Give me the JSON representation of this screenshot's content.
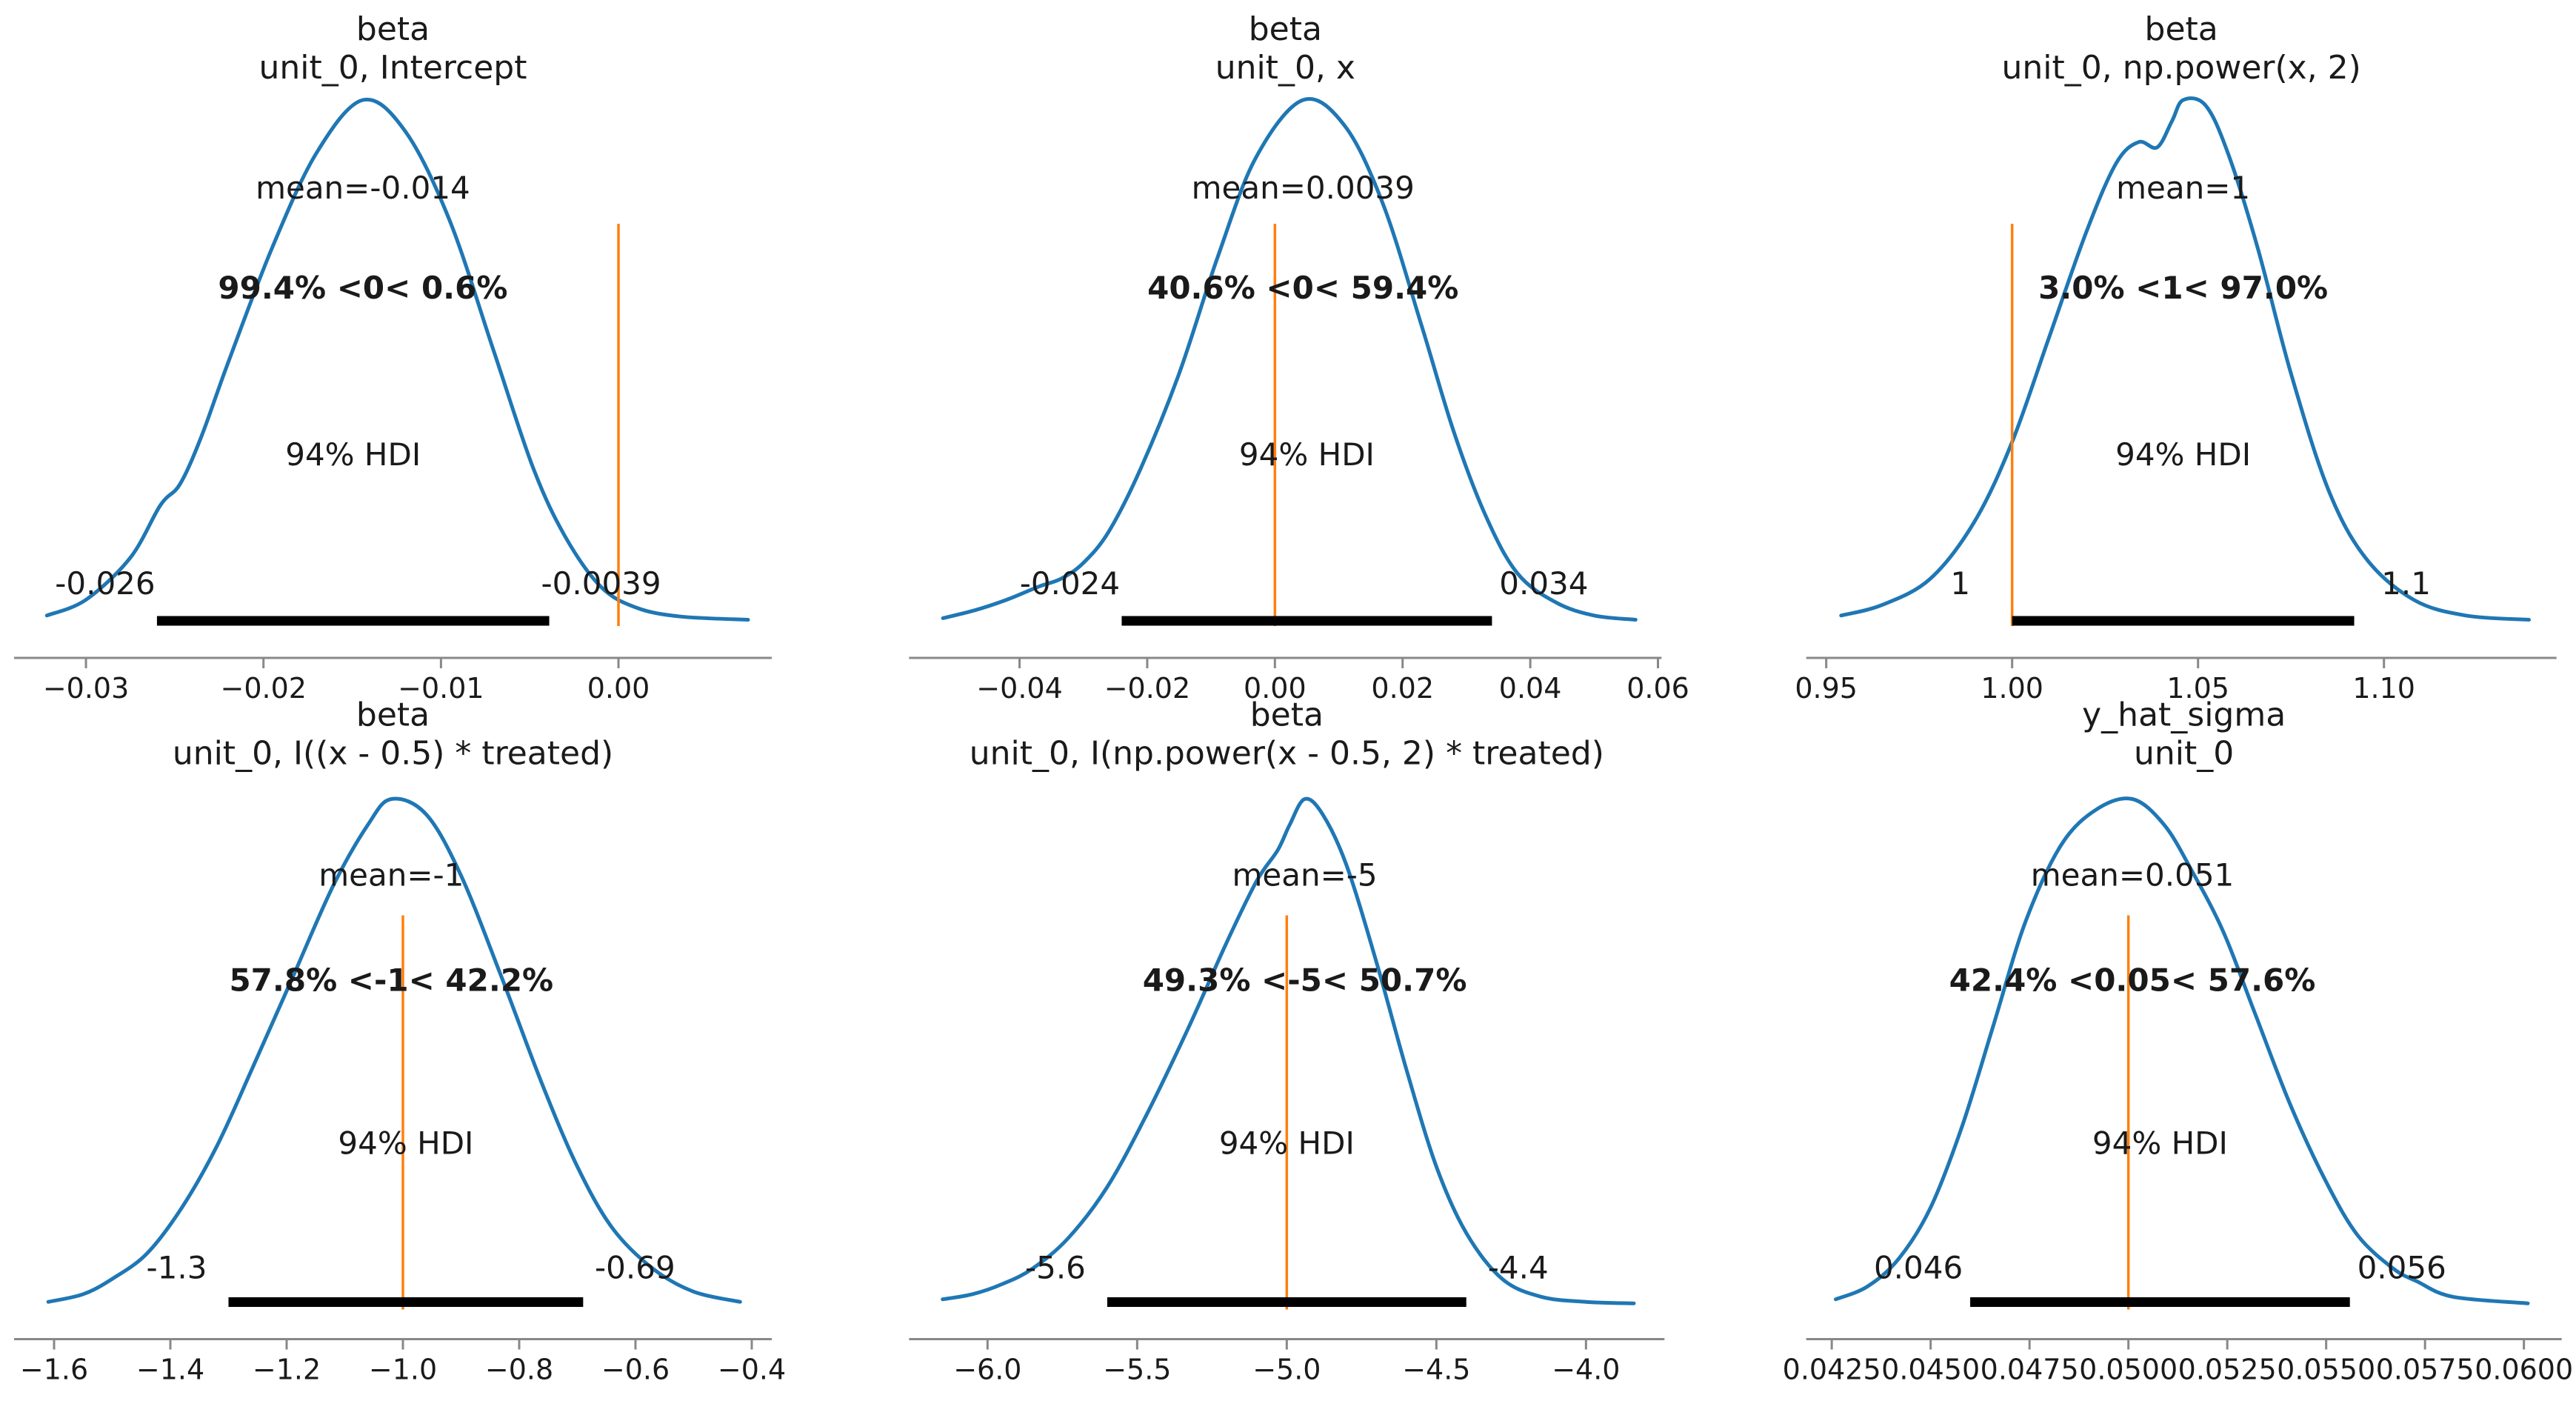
{
  "figure": {
    "kind": "posterior-grid",
    "rows": 2,
    "cols": 3,
    "background": "#ffffff",
    "colors": {
      "kde": "#1f77b4",
      "ref_line": "#ff7f0e",
      "ref_text": "#ff7f0e",
      "hdi_bar": "#000000",
      "axis": "#888888",
      "text": "#1a1a1a"
    }
  },
  "chart_data": [
    {
      "type": "kde",
      "title": [
        "beta",
        "unit_0, Intercept"
      ],
      "mean_label": "mean=-0.014",
      "mean_value": -0.014,
      "ref_label": "99.4% <0< 0.6%",
      "ref_value": 0,
      "hdi_label": "94% HDI",
      "hdi": [
        -0.026,
        -0.0039
      ],
      "hdi_text_labels": [
        "-0.026",
        "-0.0039"
      ],
      "peak_x": -0.0144,
      "xlim": [
        -0.03405,
        0.008636
      ],
      "x_ticks": [
        -0.03,
        -0.02,
        -0.01,
        0.0
      ],
      "x_tick_labels": [
        "−0.03",
        "−0.02",
        "−0.01",
        "0.00"
      ],
      "curve": [
        [
          -0.0322,
          0.02
        ],
        [
          -0.03,
          0.05
        ],
        [
          -0.0275,
          0.13
        ],
        [
          -0.0258,
          0.23
        ],
        [
          -0.0247,
          0.27
        ],
        [
          -0.0235,
          0.36
        ],
        [
          -0.022,
          0.5
        ],
        [
          -0.0195,
          0.72
        ],
        [
          -0.017,
          0.9
        ],
        [
          -0.0144,
          1.0
        ],
        [
          -0.012,
          0.94
        ],
        [
          -0.0095,
          0.77
        ],
        [
          -0.007,
          0.52
        ],
        [
          -0.0048,
          0.3
        ],
        [
          -0.003,
          0.17
        ],
        [
          -0.001,
          0.075
        ],
        [
          0.001,
          0.035
        ],
        [
          0.0035,
          0.018
        ],
        [
          0.0073,
          0.012
        ]
      ]
    },
    {
      "type": "kde",
      "title": [
        "beta",
        "unit_0, x"
      ],
      "mean_label": "mean=0.0039",
      "mean_value": 0.0039,
      "ref_label": "40.6% <0< 59.4%",
      "ref_value": 0,
      "hdi_label": "94% HDI",
      "hdi": [
        -0.024,
        0.034
      ],
      "hdi_text_labels": [
        "-0.024",
        "0.034"
      ],
      "peak_x": 0.0044,
      "xlim": [
        -0.05731,
        0.06056
      ],
      "x_ticks": [
        -0.04,
        -0.02,
        0.0,
        0.02,
        0.04,
        0.06
      ],
      "x_tick_labels": [
        "−0.04",
        "−0.02",
        "0.00",
        "0.02",
        "0.04",
        "0.06"
      ],
      "curve": [
        [
          -0.052,
          0.015
        ],
        [
          -0.047,
          0.03
        ],
        [
          -0.042,
          0.05
        ],
        [
          -0.037,
          0.075
        ],
        [
          -0.0335,
          0.09
        ],
        [
          -0.03,
          0.12
        ],
        [
          -0.026,
          0.18
        ],
        [
          -0.021,
          0.3
        ],
        [
          -0.015,
          0.48
        ],
        [
          -0.009,
          0.7
        ],
        [
          -0.003,
          0.89
        ],
        [
          0.0044,
          1.0
        ],
        [
          0.011,
          0.95
        ],
        [
          0.017,
          0.8
        ],
        [
          0.023,
          0.57
        ],
        [
          0.028,
          0.37
        ],
        [
          0.033,
          0.21
        ],
        [
          0.038,
          0.1
        ],
        [
          0.044,
          0.045
        ],
        [
          0.05,
          0.02
        ],
        [
          0.0565,
          0.012
        ]
      ]
    },
    {
      "type": "kde",
      "title": [
        "beta",
        "unit_0, np.power(x, 2)"
      ],
      "mean_label": "mean=1",
      "mean_value": 1,
      "ref_label": "3.0% <1< 97.0%",
      "ref_value": 1,
      "hdi_label": "94% HDI",
      "hdi": [
        1.0,
        1.092
      ],
      "hdi_text_labels": [
        "1",
        "1.1"
      ],
      "peak_x": 1.046,
      "xlim": [
        0.94462,
        1.14641
      ],
      "x_ticks": [
        0.95,
        1.0,
        1.05,
        1.1
      ],
      "x_tick_labels": [
        "0.95",
        "1.00",
        "1.05",
        "1.10"
      ],
      "curve": [
        [
          0.954,
          0.02
        ],
        [
          0.965,
          0.04
        ],
        [
          0.978,
          0.09
        ],
        [
          0.99,
          0.2
        ],
        [
          1.0,
          0.35
        ],
        [
          1.01,
          0.55
        ],
        [
          1.02,
          0.75
        ],
        [
          1.028,
          0.88
        ],
        [
          1.034,
          0.92
        ],
        [
          1.039,
          0.91
        ],
        [
          1.043,
          0.96
        ],
        [
          1.046,
          1.0
        ],
        [
          1.052,
          0.99
        ],
        [
          1.058,
          0.9
        ],
        [
          1.066,
          0.72
        ],
        [
          1.075,
          0.48
        ],
        [
          1.085,
          0.26
        ],
        [
          1.095,
          0.13
        ],
        [
          1.108,
          0.05
        ],
        [
          1.122,
          0.02
        ],
        [
          1.139,
          0.012
        ]
      ]
    },
    {
      "type": "kde",
      "title": [
        "beta",
        "unit_0, I((x - 0.5) * treated)"
      ],
      "mean_label": "mean=-1",
      "mean_value": -1,
      "ref_label": "57.8% <-1< 42.2%",
      "ref_value": -1,
      "hdi_label": "94% HDI",
      "hdi": [
        -1.3,
        -0.69
      ],
      "hdi_text_labels": [
        "-1.3",
        "-0.69"
      ],
      "peak_x": -1.02,
      "xlim": [
        -1.66879,
        -0.36561
      ],
      "x_ticks": [
        -1.6,
        -1.4,
        -1.2,
        -1.0,
        -0.8,
        -0.6,
        -0.4
      ],
      "x_tick_labels": [
        "−1.6",
        "−1.4",
        "−1.2",
        "−1.0",
        "−0.8",
        "−0.6",
        "−0.4"
      ],
      "curve": [
        [
          -1.61,
          0.015
        ],
        [
          -1.55,
          0.03
        ],
        [
          -1.5,
          0.06
        ],
        [
          -1.44,
          0.11
        ],
        [
          -1.38,
          0.2
        ],
        [
          -1.32,
          0.32
        ],
        [
          -1.26,
          0.47
        ],
        [
          -1.19,
          0.65
        ],
        [
          -1.12,
          0.83
        ],
        [
          -1.06,
          0.95
        ],
        [
          -1.02,
          1.0
        ],
        [
          -0.96,
          0.97
        ],
        [
          -0.9,
          0.85
        ],
        [
          -0.83,
          0.65
        ],
        [
          -0.76,
          0.44
        ],
        [
          -0.7,
          0.28
        ],
        [
          -0.64,
          0.16
        ],
        [
          -0.57,
          0.08
        ],
        [
          -0.5,
          0.035
        ],
        [
          -0.42,
          0.015
        ]
      ]
    },
    {
      "type": "kde",
      "title": [
        "beta",
        "unit_0, I(np.power(x - 0.5, 2) * treated)"
      ],
      "mean_label": "mean=-5",
      "mean_value": -5,
      "ref_label": "49.3% <-5< 50.7%",
      "ref_value": -5,
      "hdi_label": "94% HDI",
      "hdi": [
        -5.6,
        -4.4
      ],
      "hdi_text_labels": [
        "-5.6",
        "-4.4"
      ],
      "peak_x": -4.94,
      "xlim": [
        -6.26238,
        -3.73762
      ],
      "x_ticks": [
        -6.0,
        -5.5,
        -5.0,
        -4.5,
        -4.0
      ],
      "x_tick_labels": [
        "−6.0",
        "−5.5",
        "−5.0",
        "−4.5",
        "−4.0"
      ],
      "curve": [
        [
          -6.15,
          0.02
        ],
        [
          -6.05,
          0.03
        ],
        [
          -5.95,
          0.05
        ],
        [
          -5.85,
          0.08
        ],
        [
          -5.73,
          0.14
        ],
        [
          -5.6,
          0.24
        ],
        [
          -5.47,
          0.38
        ],
        [
          -5.33,
          0.55
        ],
        [
          -5.2,
          0.72
        ],
        [
          -5.1,
          0.84
        ],
        [
          -5.03,
          0.9
        ],
        [
          -4.99,
          0.95
        ],
        [
          -4.94,
          1.0
        ],
        [
          -4.88,
          0.97
        ],
        [
          -4.8,
          0.87
        ],
        [
          -4.7,
          0.68
        ],
        [
          -4.6,
          0.47
        ],
        [
          -4.5,
          0.28
        ],
        [
          -4.4,
          0.15
        ],
        [
          -4.28,
          0.06
        ],
        [
          -4.15,
          0.025
        ],
        [
          -4.0,
          0.015
        ],
        [
          -3.84,
          0.012
        ]
      ]
    },
    {
      "type": "kde",
      "title": [
        "y_hat_sigma",
        "unit_0"
      ],
      "mean_label": "mean=0.051",
      "mean_value": 0.051,
      "ref_label": "42.4% <0.05< 57.6%",
      "ref_value": 0.05,
      "hdi_label": "94% HDI",
      "hdi": [
        0.046,
        0.0556
      ],
      "hdi_text_labels": [
        "0.046",
        "0.056"
      ],
      "peak_x": 0.0501,
      "xlim": [
        0.041854,
        0.060955
      ],
      "x_ticks": [
        0.0425,
        0.045,
        0.0475,
        0.05,
        0.0525,
        0.055,
        0.0575,
        0.06
      ],
      "x_tick_labels": [
        "0.0425",
        "0.0450",
        "0.0475",
        "0.0500",
        "0.0525",
        "0.0550",
        "0.0575",
        "0.0600"
      ],
      "curve": [
        [
          0.0426,
          0.02
        ],
        [
          0.0434,
          0.045
        ],
        [
          0.0442,
          0.1
        ],
        [
          0.045,
          0.2
        ],
        [
          0.0458,
          0.36
        ],
        [
          0.0466,
          0.56
        ],
        [
          0.0474,
          0.76
        ],
        [
          0.0483,
          0.91
        ],
        [
          0.0492,
          0.98
        ],
        [
          0.0501,
          1.0
        ],
        [
          0.0509,
          0.95
        ],
        [
          0.0516,
          0.86
        ],
        [
          0.0524,
          0.74
        ],
        [
          0.0532,
          0.58
        ],
        [
          0.0541,
          0.4
        ],
        [
          0.055,
          0.25
        ],
        [
          0.0558,
          0.145
        ],
        [
          0.0567,
          0.08
        ],
        [
          0.0573,
          0.055
        ],
        [
          0.0582,
          0.025
        ],
        [
          0.0601,
          0.012
        ]
      ]
    }
  ]
}
